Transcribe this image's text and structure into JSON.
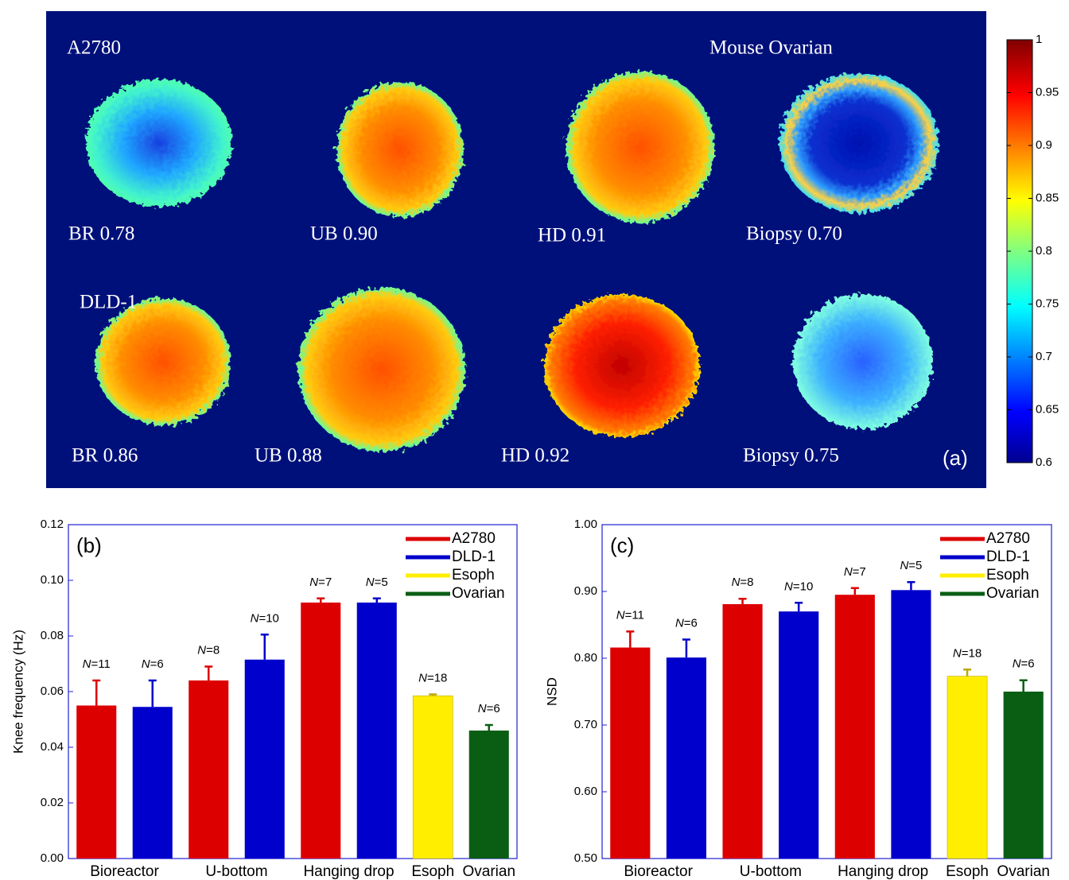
{
  "chart_data": [
    {
      "type": "heatmap",
      "row_labels": [
        "A2780",
        "DLD-1"
      ],
      "group_label": "Mouse Ovarian",
      "panel_labels": [
        "BR 0.78",
        "UB 0.90",
        "HD 0.91",
        "Biopsy 0.70",
        "BR 0.86",
        "UB 0.88",
        "HD 0.92",
        "Biopsy 0.75"
      ],
      "panel_label": "(a)",
      "ylim": [
        0.6,
        1
      ],
      "yticks": [
        1,
        0.95,
        0.9,
        0.85,
        0.8,
        0.75,
        0.7,
        0.65,
        0.6
      ]
    },
    {
      "type": "bar",
      "panel_label": "(b)",
      "ylabel": "Knee frequency (Hz)",
      "categories": [
        "Bioreactor",
        "U-bottom",
        "Hanging drop",
        "Esoph",
        "Ovarian"
      ],
      "series": [
        {
          "name": "A2780",
          "color": "#dd0000",
          "values": [
            0.055,
            0.064,
            0.092,
            null,
            null
          ],
          "errors": [
            0.009,
            0.005,
            0.0015,
            null,
            null
          ],
          "n_labels": [
            "N=11",
            "N=8",
            "N=7",
            null,
            null
          ]
        },
        {
          "name": "DLD-1",
          "color": "#0000cc",
          "values": [
            0.0545,
            0.0715,
            0.092,
            null,
            null
          ],
          "errors": [
            0.0095,
            0.009,
            0.0015,
            null,
            null
          ],
          "n_labels": [
            "N=6",
            "N=10",
            "N=5",
            null,
            null
          ]
        },
        {
          "name": "Esoph",
          "color": "#ffee00",
          "values": [
            null,
            null,
            null,
            0.0585,
            null
          ],
          "errors": [
            null,
            null,
            null,
            0.0005,
            null
          ],
          "n_labels": [
            null,
            null,
            null,
            "N=18",
            null
          ]
        },
        {
          "name": "Ovarian",
          "color": "#0a5e14",
          "values": [
            null,
            null,
            null,
            null,
            0.046
          ],
          "errors": [
            null,
            null,
            null,
            null,
            0.002
          ],
          "n_labels": [
            null,
            null,
            null,
            null,
            "N=6"
          ]
        }
      ],
      "ylim": [
        0,
        0.12
      ],
      "yticks": [
        {
          "value": 0,
          "label": "0.00"
        },
        {
          "value": 0.02,
          "label": "0.02"
        },
        {
          "value": 0.04,
          "label": "0.04"
        },
        {
          "value": 0.06,
          "label": "0.06"
        },
        {
          "value": 0.08,
          "label": "0.08"
        },
        {
          "value": 0.1,
          "label": "0.10"
        },
        {
          "value": 0.12,
          "label": "0.12"
        }
      ],
      "legend": "upper right"
    },
    {
      "type": "bar",
      "panel_label": "(c)",
      "ylabel": "NSD",
      "categories": [
        "Bioreactor",
        "U-bottom",
        "Hanging drop",
        "Esoph",
        "Ovarian"
      ],
      "series": [
        {
          "name": "A2780",
          "color": "#dd0000",
          "values": [
            0.816,
            0.881,
            0.895,
            null,
            null
          ],
          "errors": [
            0.024,
            0.008,
            0.01,
            null,
            null
          ],
          "n_labels": [
            "N=11",
            "N=8",
            "N=7",
            null,
            null
          ]
        },
        {
          "name": "DLD-1",
          "color": "#0000cc",
          "values": [
            0.801,
            0.87,
            0.902,
            null,
            null
          ],
          "errors": [
            0.027,
            0.013,
            0.012,
            null,
            null
          ],
          "n_labels": [
            "N=6",
            "N=10",
            "N=5",
            null,
            null
          ]
        },
        {
          "name": "Esoph",
          "color": "#ffee00",
          "values": [
            null,
            null,
            null,
            0.773,
            null
          ],
          "errors": [
            null,
            null,
            null,
            0.01,
            null
          ],
          "n_labels": [
            null,
            null,
            null,
            "N=18",
            null
          ]
        },
        {
          "name": "Ovarian",
          "color": "#0a5e14",
          "values": [
            null,
            null,
            null,
            null,
            0.75
          ],
          "errors": [
            null,
            null,
            null,
            null,
            0.017
          ],
          "n_labels": [
            null,
            null,
            null,
            null,
            "N=6"
          ]
        }
      ],
      "ylim": [
        0.5,
        1.0
      ],
      "yticks": [
        {
          "value": 0.5,
          "label": "0.50"
        },
        {
          "value": 0.6,
          "label": "0.60"
        },
        {
          "value": 0.7,
          "label": "0.70"
        },
        {
          "value": 0.8,
          "label": "0.80"
        },
        {
          "value": 0.9,
          "label": "0.90"
        },
        {
          "value": 1.0,
          "label": "1.00"
        }
      ],
      "legend": "upper right"
    }
  ]
}
